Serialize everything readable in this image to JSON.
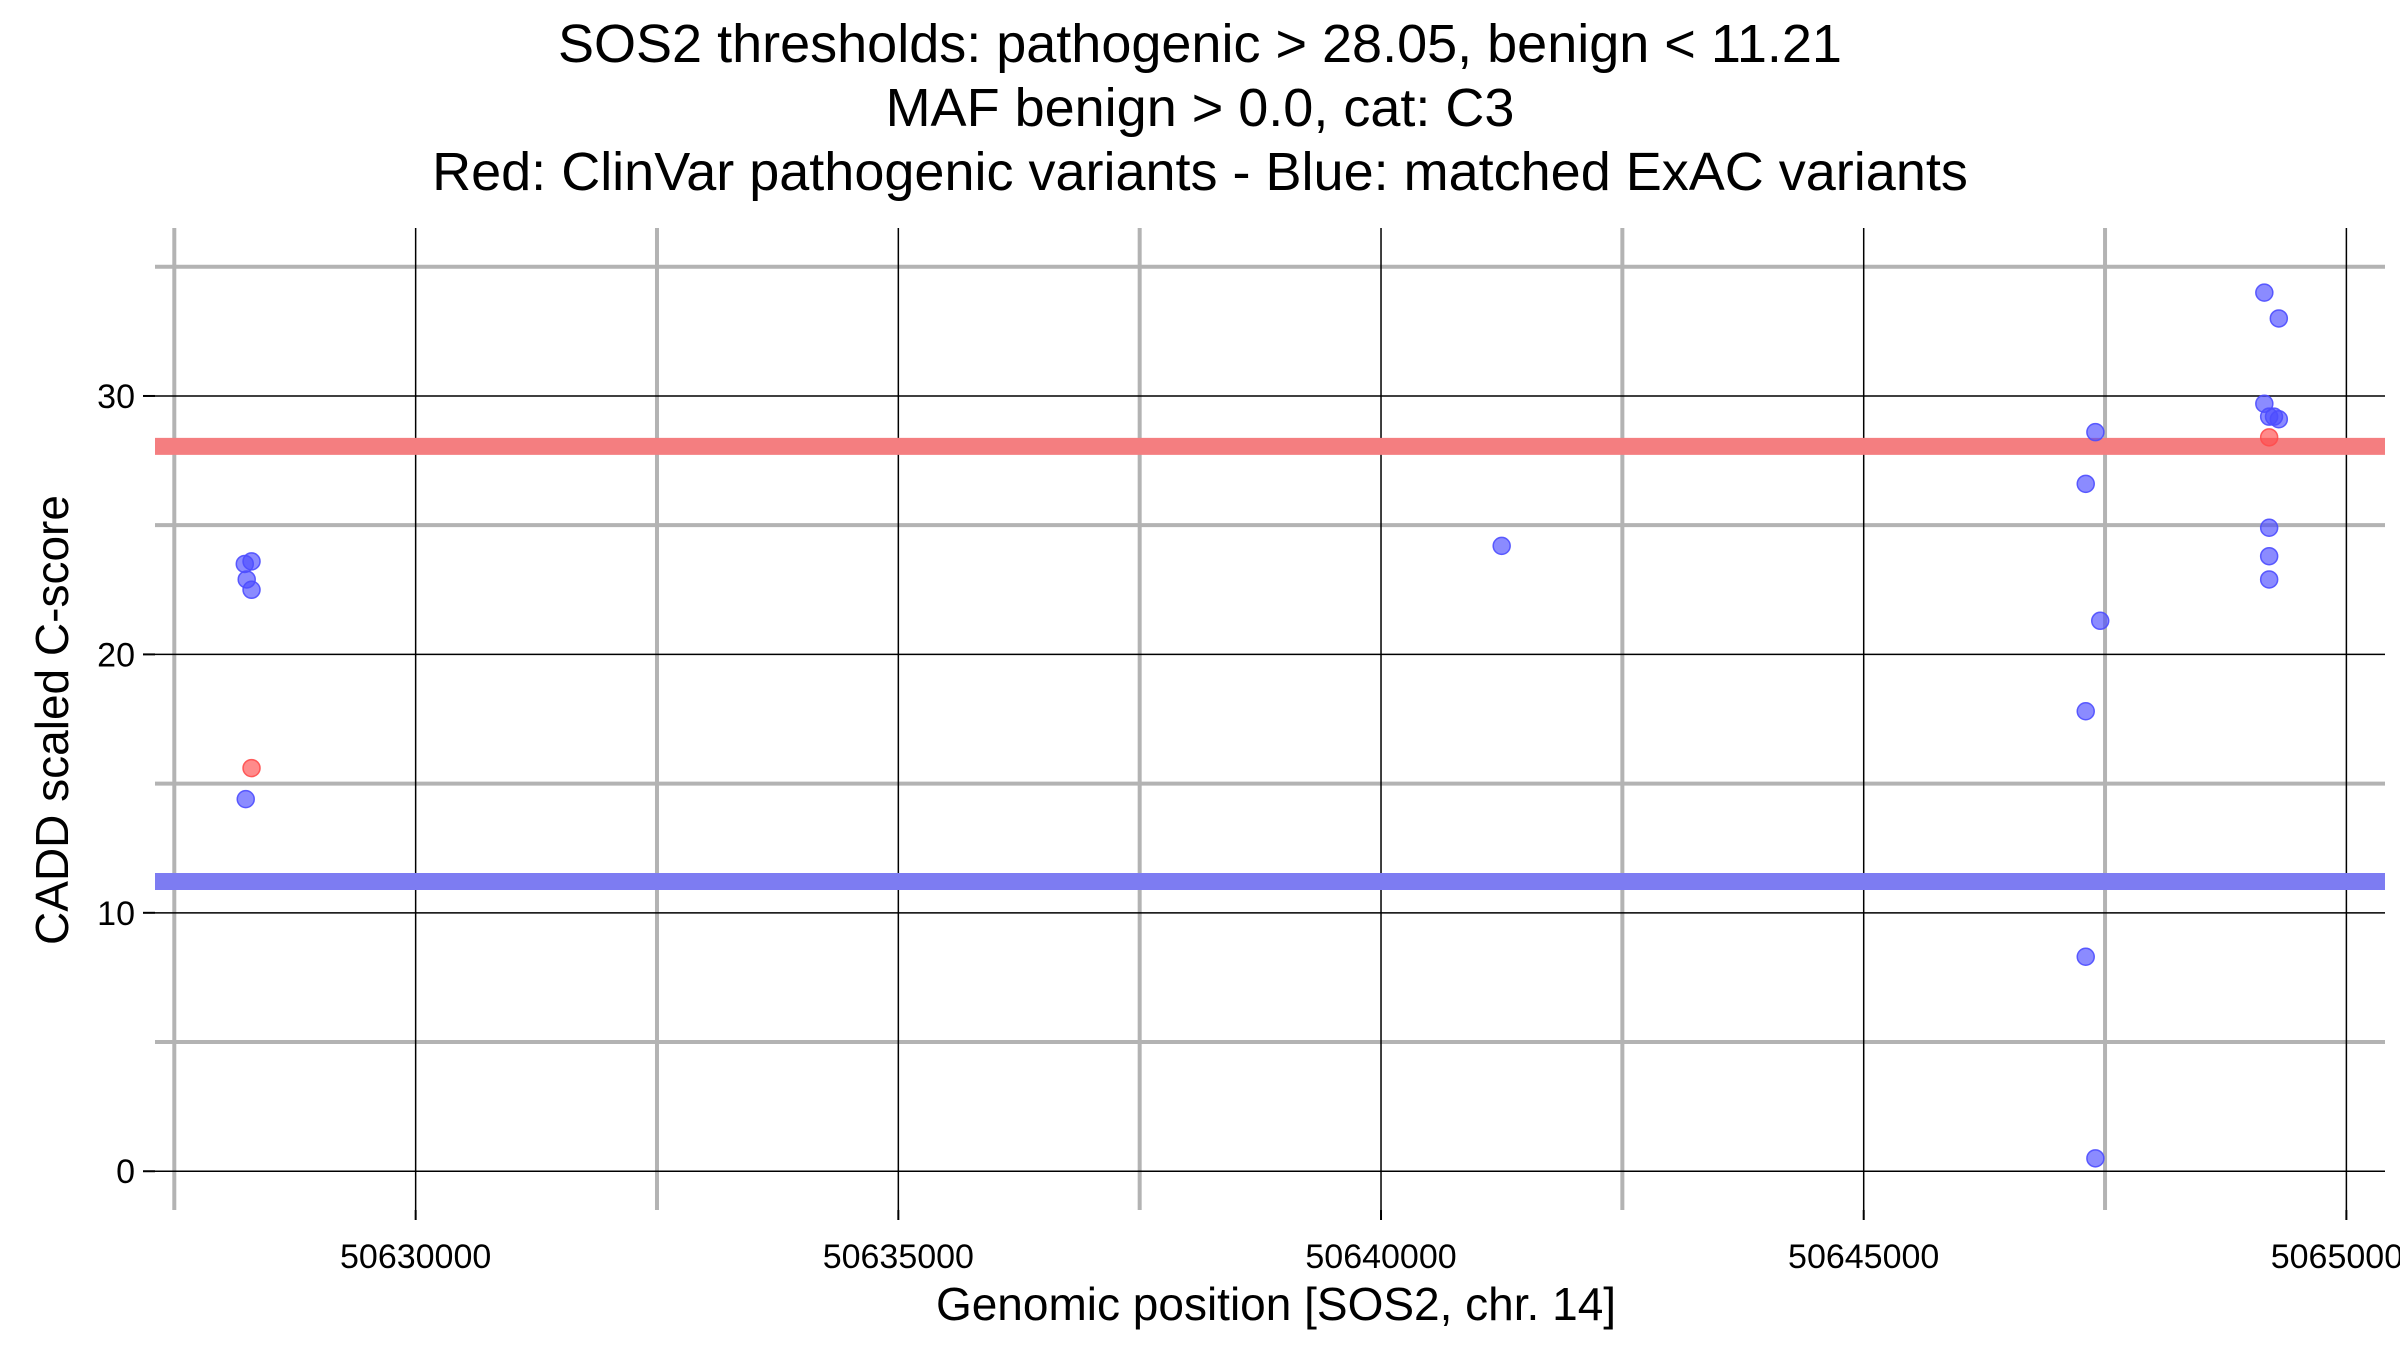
{
  "chart_data": {
    "type": "scatter",
    "title_lines": [
      "SOS2 thresholds: pathogenic > 28.05, benign < 11.21",
      "MAF benign > 0.0, cat: C3",
      "Red: ClinVar pathogenic variants - Blue: matched ExAC variants"
    ],
    "xlabel": "Genomic position [SOS2, chr. 14]",
    "ylabel": "CADD scaled C-score",
    "xlim": [
      50627300,
      50650400
    ],
    "ylim": [
      -1.5,
      36.5
    ],
    "x_ticks": [
      50630000,
      50635000,
      50640000,
      50645000,
      50650000
    ],
    "x_tick_labels": [
      "50630000",
      "50635000",
      "50640000",
      "50645000",
      "50650000"
    ],
    "x_minor_ticks": [
      50627500,
      50632500,
      50637500,
      50642500,
      50647500
    ],
    "y_ticks": [
      0,
      10,
      20,
      30
    ],
    "y_tick_labels": [
      "0",
      "10",
      "20",
      "30"
    ],
    "y_minor_ticks": [
      5,
      15,
      25,
      35
    ],
    "grid": true,
    "thresholds": [
      {
        "name": "pathogenic",
        "value": 28.05,
        "color": "#f47e80"
      },
      {
        "name": "benign",
        "value": 11.21,
        "color": "#7d7cf2"
      }
    ],
    "series": [
      {
        "name": "ClinVar pathogenic",
        "color": "#ff4d4d",
        "points": [
          {
            "x": 50628300,
            "y": 15.6
          },
          {
            "x": 50649200,
            "y": 28.4
          }
        ]
      },
      {
        "name": "matched ExAC",
        "color": "#4d4dff",
        "points": [
          {
            "x": 50628230,
            "y": 23.5
          },
          {
            "x": 50628300,
            "y": 23.6
          },
          {
            "x": 50628250,
            "y": 22.9
          },
          {
            "x": 50628300,
            "y": 22.5
          },
          {
            "x": 50628240,
            "y": 14.4
          },
          {
            "x": 50641250,
            "y": 24.2
          },
          {
            "x": 50647400,
            "y": 28.6
          },
          {
            "x": 50647300,
            "y": 26.6
          },
          {
            "x": 50647450,
            "y": 21.3
          },
          {
            "x": 50647300,
            "y": 17.8
          },
          {
            "x": 50647300,
            "y": 8.3
          },
          {
            "x": 50647400,
            "y": 0.5
          },
          {
            "x": 50649150,
            "y": 34.0
          },
          {
            "x": 50649300,
            "y": 33.0
          },
          {
            "x": 50649150,
            "y": 29.7
          },
          {
            "x": 50649200,
            "y": 29.2
          },
          {
            "x": 50649250,
            "y": 29.2
          },
          {
            "x": 50649300,
            "y": 29.1
          },
          {
            "x": 50649200,
            "y": 24.9
          },
          {
            "x": 50649200,
            "y": 23.8
          },
          {
            "x": 50649200,
            "y": 22.9
          }
        ]
      }
    ]
  }
}
